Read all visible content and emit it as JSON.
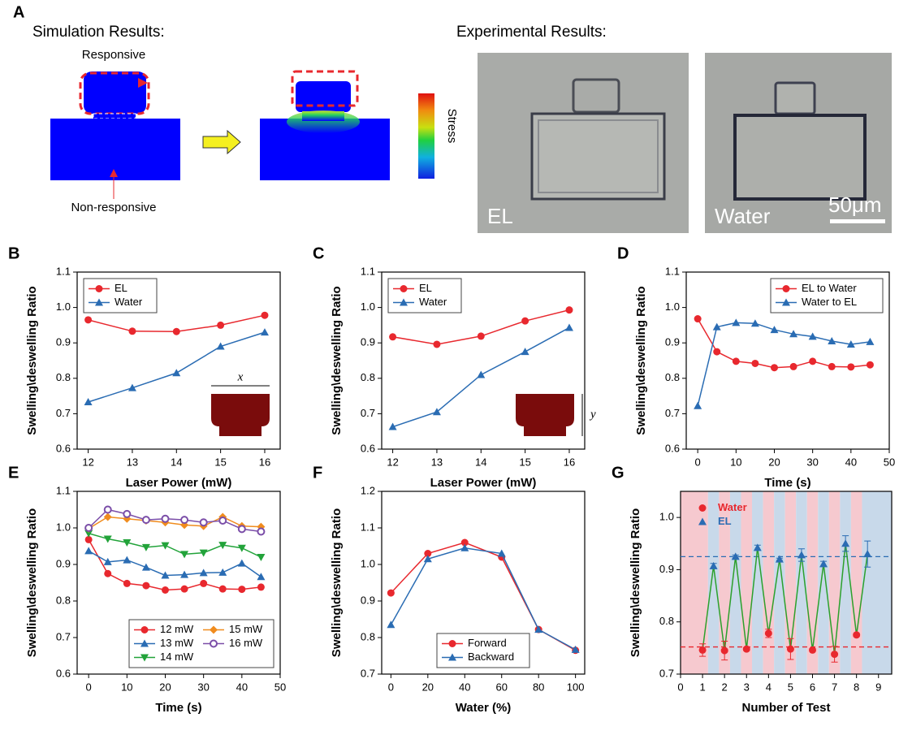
{
  "panel_a": {
    "letter": "A",
    "sim_title": "Simulation Results:",
    "exp_title": "Experimental Results:",
    "responsive": "Responsive",
    "non_responsive": "Non-responsive",
    "stress": "Stress",
    "img1_label": "EL",
    "img2_label": "Water",
    "scale_bar": "50μm"
  },
  "chart_data": [
    {
      "type": "line",
      "letter": "B",
      "xlabel": "Laser Power (mW)",
      "ylabel": "Swelling\\deswelling Ratio",
      "xlim": [
        11.75,
        16.35
      ],
      "ylim": [
        0.6,
        1.1
      ],
      "xticks": [
        12,
        13,
        14,
        15,
        16
      ],
      "yticks": [
        0.6,
        0.7,
        0.8,
        0.9,
        {
          "value": 1,
          "label": "1.0"
        },
        1.1
      ],
      "legend": "upper left",
      "inset_label": "x",
      "x": [
        12,
        13,
        14,
        15,
        16
      ],
      "series": [
        {
          "name": "EL",
          "color": "#e8282e",
          "marker": "circle",
          "values": [
            0.965,
            0.933,
            0.932,
            0.95,
            0.978
          ]
        },
        {
          "name": "Water",
          "color": "#2a6cb3",
          "marker": "triangle",
          "values": [
            0.733,
            0.773,
            0.815,
            0.89,
            0.93
          ]
        }
      ]
    },
    {
      "type": "line",
      "letter": "C",
      "xlabel": "Laser Power (mW)",
      "ylabel": "Swelling\\deswelling Ratio",
      "xlim": [
        11.75,
        16.35
      ],
      "ylim": [
        0.6,
        1.1
      ],
      "xticks": [
        12,
        13,
        14,
        15,
        16
      ],
      "yticks": [
        0.6,
        0.7,
        0.8,
        0.9,
        {
          "value": 1,
          "label": "1.0"
        },
        1.1
      ],
      "legend": "upper left",
      "inset_label": "y",
      "x": [
        12,
        13,
        14,
        15,
        16
      ],
      "series": [
        {
          "name": "EL",
          "color": "#e8282e",
          "marker": "circle",
          "values": [
            0.917,
            0.896,
            0.919,
            0.962,
            0.993
          ]
        },
        {
          "name": "Water",
          "color": "#2a6cb3",
          "marker": "triangle",
          "values": [
            0.663,
            0.705,
            0.81,
            0.875,
            0.943
          ]
        }
      ]
    },
    {
      "type": "line",
      "letter": "D",
      "xlabel": "Time (s)",
      "ylabel": "Swelling\\deswelling Ratio",
      "xlim": [
        -3,
        50
      ],
      "ylim": [
        0.6,
        1.1
      ],
      "xticks": [
        0,
        10,
        20,
        30,
        40,
        50
      ],
      "yticks": [
        0.6,
        0.7,
        0.8,
        0.9,
        {
          "value": 1,
          "label": "1.0"
        },
        1.1
      ],
      "legend": "upper right",
      "x": [
        0,
        5,
        10,
        15,
        20,
        25,
        30,
        35,
        40,
        45
      ],
      "series": [
        {
          "name": "EL to Water",
          "color": "#e8282e",
          "marker": "circle",
          "values": [
            0.968,
            0.875,
            0.848,
            0.842,
            0.83,
            0.833,
            0.848,
            0.833,
            0.832,
            0.838
          ]
        },
        {
          "name": "Water to EL",
          "color": "#2a6cb3",
          "marker": "triangle",
          "values": [
            0.722,
            0.945,
            0.957,
            0.955,
            0.937,
            0.925,
            0.918,
            0.905,
            0.896,
            0.903
          ]
        }
      ]
    },
    {
      "type": "line",
      "letter": "E",
      "xlabel": "Time (s)",
      "ylabel": "Swelling\\deswelling Ratio",
      "xlim": [
        -3,
        50
      ],
      "ylim": [
        0.6,
        1.1
      ],
      "xticks": [
        0,
        10,
        20,
        30,
        40,
        50
      ],
      "yticks": [
        0.6,
        0.7,
        0.8,
        0.9,
        {
          "value": 1,
          "label": "1.0"
        },
        1.1
      ],
      "legend": "lower right",
      "legend_ncol": 2,
      "x": [
        0,
        5,
        10,
        15,
        20,
        25,
        30,
        35,
        40,
        45
      ],
      "series": [
        {
          "name": "12 mW",
          "color": "#e8282e",
          "marker": "circle",
          "values": [
            0.968,
            0.875,
            0.848,
            0.842,
            0.83,
            0.833,
            0.848,
            0.833,
            0.832,
            0.838
          ]
        },
        {
          "name": "13 mW",
          "color": "#2a6cb3",
          "marker": "triangle",
          "values": [
            0.937,
            0.907,
            0.912,
            0.892,
            0.87,
            0.872,
            0.877,
            0.878,
            0.903,
            0.866
          ]
        },
        {
          "name": "14 mW",
          "color": "#22a33a",
          "marker": "triangle-down",
          "values": [
            0.985,
            0.97,
            0.96,
            0.947,
            0.952,
            0.928,
            0.932,
            0.953,
            0.945,
            0.92
          ]
        },
        {
          "name": "15 mW",
          "color": "#f08c1e",
          "marker": "diamond",
          "values": [
            0.998,
            1.03,
            1.025,
            1.02,
            1.015,
            1.008,
            1.005,
            1.03,
            1.005,
            1.003
          ]
        },
        {
          "name": "16 mW",
          "color": "#7b4ea8",
          "marker": "hollow-circle",
          "values": [
            1.0,
            1.05,
            1.038,
            1.022,
            1.025,
            1.022,
            1.015,
            1.02,
            0.997,
            0.99
          ]
        }
      ]
    },
    {
      "type": "line",
      "letter": "F",
      "xlabel": "Water (%)",
      "ylabel": "Swelling\\deswelling Ratio",
      "xlim": [
        -5,
        105
      ],
      "ylim": [
        0.7,
        1.2
      ],
      "xticks": [
        0,
        20,
        40,
        60,
        80,
        100
      ],
      "yticks": [
        0.7,
        0.8,
        0.9,
        {
          "value": 1,
          "label": "1.0"
        },
        1.1,
        1.2
      ],
      "legend": "lower center",
      "x": [
        0,
        20,
        40,
        60,
        80,
        100
      ],
      "series": [
        {
          "name": "Forward",
          "color": "#e8282e",
          "marker": "circle",
          "values": [
            0.922,
            1.03,
            1.06,
            1.02,
            0.822,
            0.765
          ]
        },
        {
          "name": "Backward",
          "color": "#2a6cb3",
          "marker": "triangle",
          "values": [
            0.835,
            1.015,
            1.045,
            1.03,
            0.822,
            0.767
          ]
        }
      ]
    },
    {
      "type": "scatter",
      "letter": "G",
      "xlabel": "Number of Test",
      "ylabel": "Swelling\\deswelling Ratio",
      "xlim": [
        0,
        9.6
      ],
      "ylim": [
        0.7,
        1.05
      ],
      "xticks": [
        0,
        1,
        2,
        3,
        4,
        5,
        6,
        7,
        8,
        9
      ],
      "yticks": [
        0.7,
        0.8,
        0.9,
        {
          "value": 1,
          "label": "1.0"
        }
      ],
      "legend": "upper left",
      "legend_text_colored": true,
      "connector_color": "#2ca02c",
      "band_colors": [
        "#f6c9cf",
        "#c8d9ea"
      ],
      "hlines": [
        {
          "value": 0.925,
          "color": "#2a6cb3"
        },
        {
          "value": 0.752,
          "color": "#e8282e"
        }
      ],
      "series": [
        {
          "name": "Water",
          "color": "#e8282e",
          "marker": "circle",
          "x": [
            1,
            2,
            3,
            4,
            5,
            6,
            7,
            8
          ],
          "values": [
            0.746,
            0.745,
            0.748,
            0.778,
            0.748,
            0.746,
            0.738,
            0.775
          ],
          "errors": [
            0.012,
            0.018,
            0.003,
            0.008,
            0.02,
            0.003,
            0.015,
            0.003
          ]
        },
        {
          "name": "EL",
          "color": "#2a6cb3",
          "marker": "triangle",
          "x": [
            1.5,
            2.5,
            3.5,
            4.5,
            5.5,
            6.5,
            7.5,
            8.5
          ],
          "values": [
            0.907,
            0.925,
            0.942,
            0.92,
            0.928,
            0.911,
            0.95,
            0.93
          ],
          "errors": [
            0.005,
            0.003,
            0.005,
            0.002,
            0.012,
            0.005,
            0.015,
            0.025
          ]
        }
      ]
    }
  ]
}
